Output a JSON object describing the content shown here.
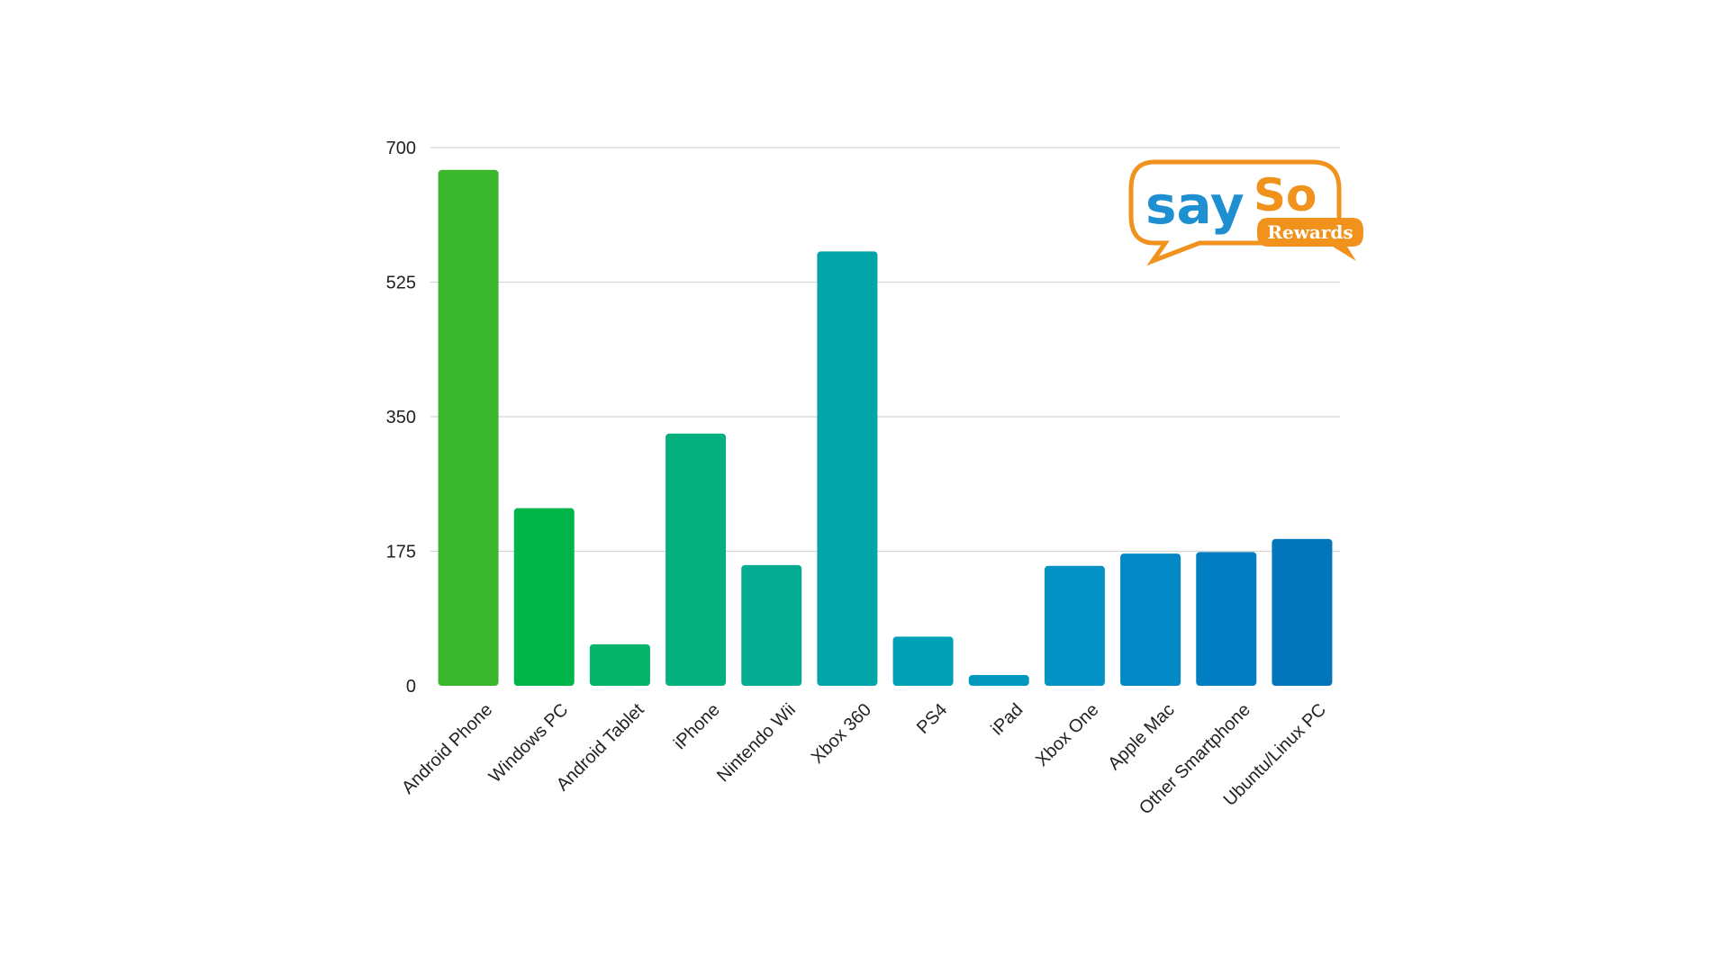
{
  "chart_data": {
    "type": "bar",
    "title": "",
    "xlabel": "",
    "ylabel": "",
    "ylim": [
      0,
      700
    ],
    "yticks": [
      0,
      175,
      350,
      525,
      700
    ],
    "grid": true,
    "categories": [
      "Android Phone",
      "Windows PC",
      "Android Tablet",
      "iPhone",
      "Nintendo Wii",
      "Xbox 360",
      "PS4",
      "iPad",
      "Xbox One",
      "Apple Mac",
      "Other Smartphone",
      "Ubuntu/Linux PC"
    ],
    "values": [
      671,
      231,
      54,
      328,
      157,
      565,
      64,
      14,
      156,
      172,
      174,
      191
    ],
    "colors": [
      "#3ab72d",
      "#00b54a",
      "#06b36a",
      "#06b07e",
      "#03ab92",
      "#01a5a7",
      "#00a0b6",
      "#0399bf",
      "#0592c4",
      "#0388c6",
      "#027fc3",
      "#0275bb"
    ]
  },
  "logo": {
    "text_main_1": "say",
    "text_main_2": "So",
    "text_badge": "Rewards",
    "colors": {
      "blue": "#1e8fd0",
      "orange": "#f0921c",
      "badge_text": "#ffffff"
    }
  }
}
